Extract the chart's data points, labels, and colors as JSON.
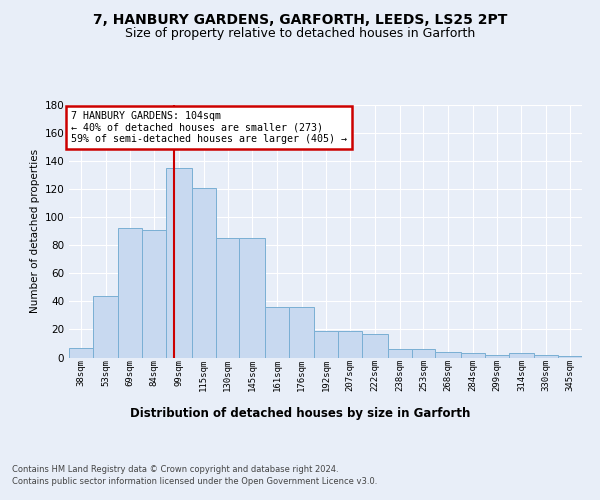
{
  "title1": "7, HANBURY GARDENS, GARFORTH, LEEDS, LS25 2PT",
  "title2": "Size of property relative to detached houses in Garforth",
  "xlabel": "Distribution of detached houses by size in Garforth",
  "ylabel": "Number of detached properties",
  "footnote1": "Contains HM Land Registry data © Crown copyright and database right 2024.",
  "footnote2": "Contains public sector information licensed under the Open Government Licence v3.0.",
  "annotation_line1": "7 HANBURY GARDENS: 104sqm",
  "annotation_line2": "← 40% of detached houses are smaller (273)",
  "annotation_line3": "59% of semi-detached houses are larger (405) →",
  "property_size": 104,
  "bar_labels": [
    "38sqm",
    "53sqm",
    "69sqm",
    "84sqm",
    "99sqm",
    "115sqm",
    "130sqm",
    "145sqm",
    "161sqm",
    "176sqm",
    "192sqm",
    "207sqm",
    "222sqm",
    "238sqm",
    "253sqm",
    "268sqm",
    "284sqm",
    "299sqm",
    "314sqm",
    "330sqm",
    "345sqm"
  ],
  "bar_edges": [
    38,
    53,
    69,
    84,
    99,
    115,
    130,
    145,
    161,
    176,
    192,
    207,
    222,
    238,
    253,
    268,
    284,
    299,
    314,
    330,
    345,
    360
  ],
  "bar_values": [
    7,
    44,
    92,
    91,
    135,
    121,
    85,
    85,
    36,
    36,
    19,
    19,
    17,
    6,
    6,
    4,
    3,
    2,
    3,
    2,
    1
  ],
  "bar_fill": "#c8d9f0",
  "bar_edge": "#7aafd4",
  "vline_x": 104,
  "vline_color": "#cc0000",
  "annotation_box_color": "#cc0000",
  "ylim": [
    0,
    180
  ],
  "yticks": [
    0,
    20,
    40,
    60,
    80,
    100,
    120,
    140,
    160,
    180
  ],
  "bg_color": "#e8eef8",
  "plot_bg": "#e8eef8",
  "grid_color": "#ffffff",
  "title1_fontsize": 10,
  "title2_fontsize": 9
}
